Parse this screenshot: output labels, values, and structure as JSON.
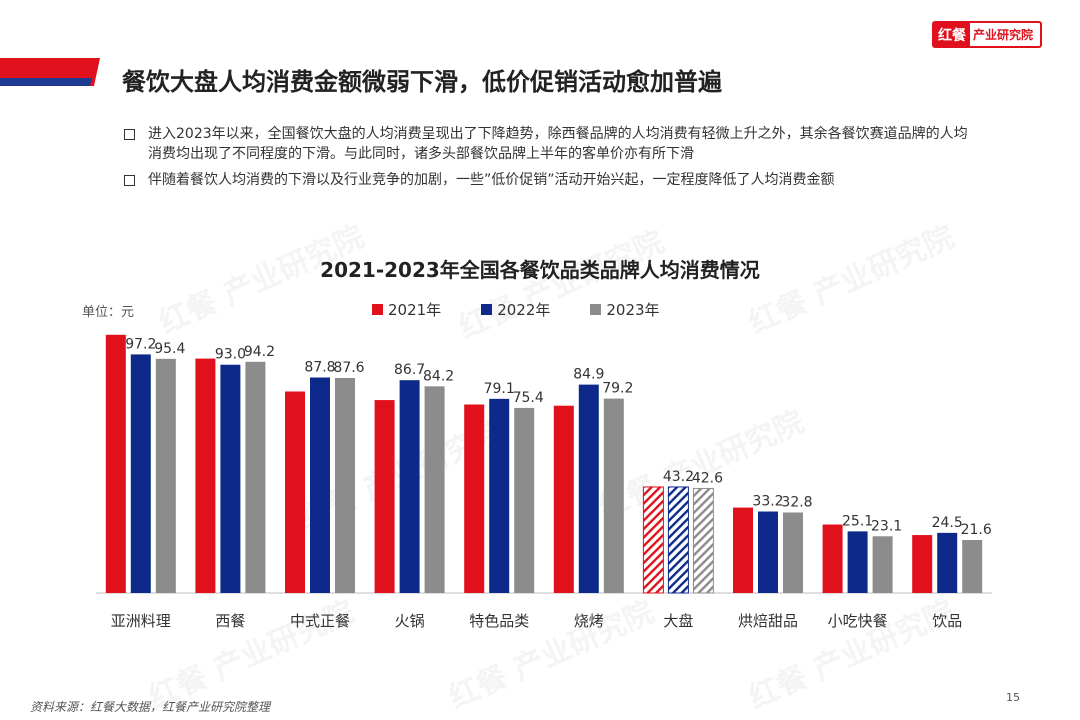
{
  "header": {
    "logo_brand": "红餐",
    "logo_institute": "产业研究院",
    "title": "餐饮大盘人均消费金额微弱下滑，低价促销活动愈加普遍"
  },
  "bullets": [
    "进入2023年以来，全国餐饮大盘的人均消费呈现出了下降趋势，除西餐品牌的人均消费有轻微上升之外，其余各餐饮赛道品牌的人均消费均出现了不同程度的下滑。与此同时，诸多头部餐饮品牌上半年的客单价亦有所下滑",
    "伴随着餐饮人均消费的下滑以及行业竞争的加剧，一些”低价促销”活动开始兴起，一定程度降低了人均消费金额"
  ],
  "colors": {
    "red": "#e0101d",
    "navy": "#0d2a8a",
    "gray": "#8c8c8c",
    "accent_blue": "#1f3a93"
  },
  "chart_data": {
    "type": "bar",
    "title": "2021-2023年全国各餐饮品类品牌人均消费情况",
    "unit_label": "单位：元",
    "categories": [
      "亚洲料理",
      "西餐",
      "中式正餐",
      "火锅",
      "特色品类",
      "烧烤",
      "大盘",
      "烘焙甜品",
      "小吃快餐",
      "饮品"
    ],
    "series": [
      {
        "name": "2021年",
        "color": "#e0101d",
        "values": [
          105.2,
          95.5,
          82.1,
          78.6,
          76.8,
          76.3,
          43.2,
          34.8,
          27.9,
          23.6
        ]
      },
      {
        "name": "2022年",
        "color": "#0d2a8a",
        "values": [
          97.2,
          93.0,
          87.8,
          86.7,
          79.1,
          84.9,
          43.2,
          33.2,
          25.1,
          24.5
        ]
      },
      {
        "name": "2023年",
        "color": "#8c8c8c",
        "values": [
          95.4,
          94.2,
          87.6,
          84.2,
          75.4,
          79.2,
          42.6,
          32.8,
          23.1,
          21.6
        ]
      }
    ],
    "labels": [
      [
        null,
        "97.2",
        "95.4"
      ],
      [
        null,
        "93.0",
        "94.2"
      ],
      [
        null,
        "87.8",
        "87.6"
      ],
      [
        null,
        "86.7",
        "84.2"
      ],
      [
        null,
        "79.1",
        "75.4"
      ],
      [
        null,
        "84.9",
        "79.2"
      ],
      [
        null,
        "43.2",
        "42.6"
      ],
      [
        null,
        "33.2",
        "32.8"
      ],
      [
        null,
        "25.1",
        "23.1"
      ],
      [
        null,
        "24.5",
        "21.6"
      ]
    ],
    "hatched_category": "大盘",
    "ylim": [
      0,
      110
    ],
    "grid": false,
    "legend_position": "top-center"
  },
  "footer": {
    "source": "资料来源：红餐大数据，红餐产业研究院整理",
    "page_number": "15"
  }
}
